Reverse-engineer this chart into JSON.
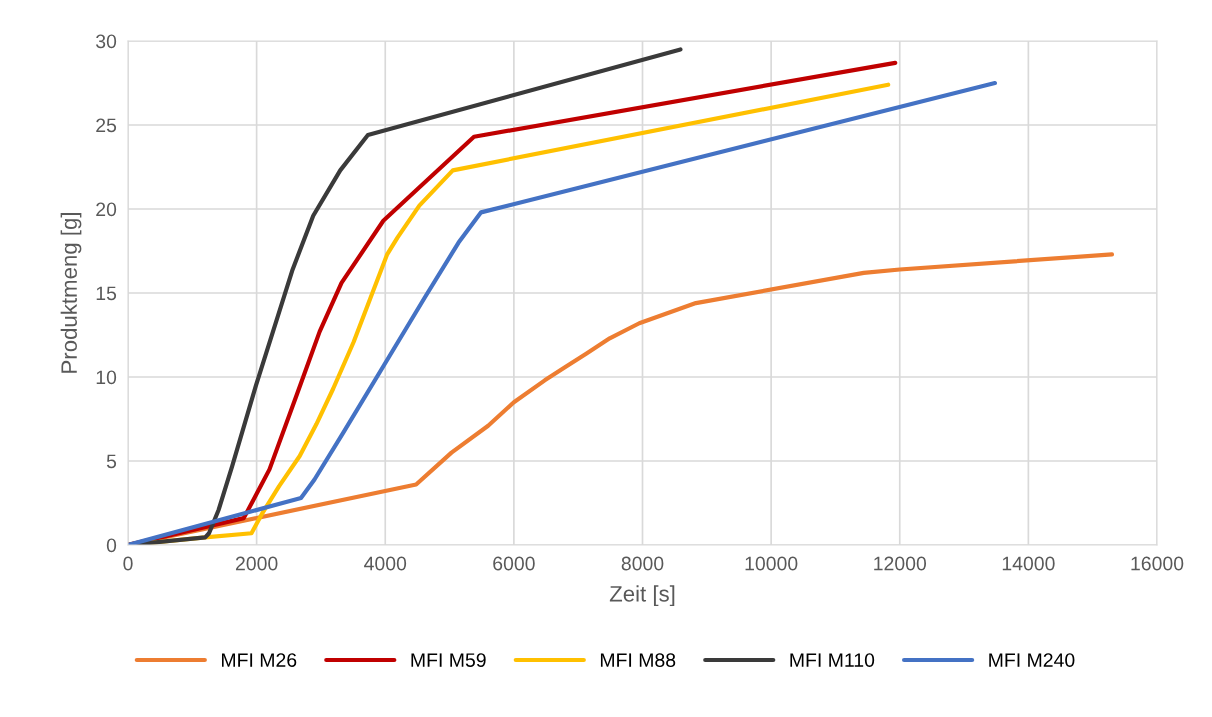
{
  "chart_data": {
    "type": "line",
    "xlabel": "Zeit [s]",
    "ylabel": "Produktmeng [g]",
    "xlim": [
      0,
      16000
    ],
    "xticks": [
      0,
      2000,
      4000,
      6000,
      8000,
      10000,
      12000,
      14000,
      16000
    ],
    "ylim": [
      0,
      30
    ],
    "yticks": [
      0,
      5,
      10,
      15,
      20,
      25,
      30
    ],
    "grid": true,
    "legend": "bottom",
    "marker": "none",
    "line_style": "solid",
    "series": [
      {
        "name": "MFI M26",
        "color": "#ed7d31",
        "x": [
          0,
          4480,
          5030,
          5600,
          6000,
          6480,
          6800,
          7130,
          7490,
          7950,
          8830,
          11440,
          12000,
          15300
        ],
        "values": [
          0,
          3.6,
          5.5,
          7.1,
          8.5,
          9.8,
          10.6,
          11.4,
          12.3,
          13.2,
          14.4,
          16.2,
          16.4,
          17.3
        ]
      },
      {
        "name": "MFI M59",
        "color": "#c00000",
        "x": [
          0,
          1800,
          2200,
          2620,
          2980,
          3320,
          3970,
          5380,
          11930
        ],
        "values": [
          0,
          1.6,
          4.5,
          8.9,
          12.7,
          15.6,
          19.3,
          24.3,
          28.7
        ]
      },
      {
        "name": "MFI M88",
        "color": "#ffc000",
        "x": [
          0,
          1200,
          1920,
          2090,
          2350,
          2670,
          2930,
          3190,
          3510,
          3770,
          4030,
          4190,
          4530,
          5050,
          11820
        ],
        "values": [
          0,
          0.45,
          0.7,
          1.9,
          3.5,
          5.3,
          7.2,
          9.3,
          12.1,
          14.7,
          17.3,
          18.3,
          20.2,
          22.3,
          27.4
        ]
      },
      {
        "name": "MFI M110",
        "color": "#3a3a3a",
        "x": [
          0,
          1200,
          1260,
          1410,
          1620,
          1990,
          2560,
          2880,
          3300,
          3730,
          8590
        ],
        "values": [
          0,
          0.45,
          0.7,
          2.1,
          4.7,
          9.5,
          16.4,
          19.6,
          22.3,
          24.4,
          29.5
        ]
      },
      {
        "name": "MFI M240",
        "color": "#4472c4",
        "x": [
          0,
          2690,
          2900,
          3350,
          3980,
          4610,
          5140,
          5490,
          13480
        ],
        "values": [
          0,
          2.8,
          3.9,
          6.7,
          10.7,
          14.7,
          18.0,
          19.8,
          27.5
        ]
      }
    ]
  }
}
